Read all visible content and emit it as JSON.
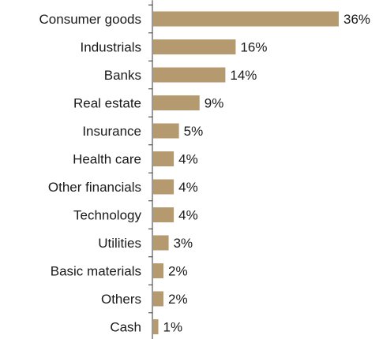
{
  "chart_data": {
    "type": "bar",
    "orientation": "horizontal",
    "categories": [
      "Consumer goods",
      "Industrials",
      "Banks",
      "Real estate",
      "Insurance",
      "Health care",
      "Other financials",
      "Technology",
      "Utilities",
      "Basic materials",
      "Others",
      "Cash"
    ],
    "values": [
      36,
      16,
      14,
      9,
      5,
      4,
      4,
      4,
      3,
      2,
      2,
      1
    ],
    "value_labels": [
      "36%",
      "16%",
      "14%",
      "9%",
      "5%",
      "4%",
      "4%",
      "4%",
      "3%",
      "2%",
      "2%",
      "1%"
    ],
    "title": "",
    "xlabel": "",
    "ylabel": "",
    "xlim": [
      0,
      36
    ],
    "grid": false,
    "bar_color": "#b59a70"
  }
}
